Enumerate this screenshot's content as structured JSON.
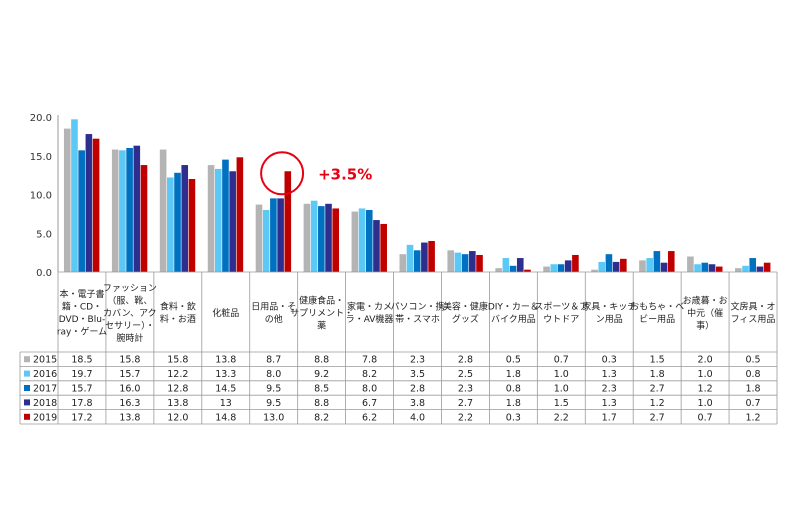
{
  "chart_data": {
    "type": "bar",
    "categories": [
      [
        "本・電子書",
        "籍・CD・",
        "DVD・Blu-",
        "ray・ゲーム"
      ],
      [
        "ファッション",
        "（服、靴、",
        "カバン、アク",
        "セサリー）・",
        "腕時計"
      ],
      [
        "食料・飲",
        "料・お酒"
      ],
      [
        "化粧品"
      ],
      [
        "日用品・そ",
        "の他"
      ],
      [
        "健康食品・",
        "サプリメント・",
        "薬"
      ],
      [
        "家電・カメ",
        "ラ・AV機器"
      ],
      [
        "パソコン・携",
        "帯・スマホ"
      ],
      [
        "美容・健康",
        "グッズ"
      ],
      [
        "DIY・カー＆",
        "バイク用品"
      ],
      [
        "スポーツ＆ア",
        "ウトドア"
      ],
      [
        "家具・キッチ",
        "ン用品"
      ],
      [
        "おもちゃ・ベ",
        "ビー用品"
      ],
      [
        "お歳暮・お",
        "中元（催",
        "事）"
      ],
      [
        "文房具・オ",
        "フィス用品"
      ]
    ],
    "series": [
      {
        "name": "2015",
        "color": "#b4b4b4",
        "values": [
          18.5,
          15.8,
          15.8,
          13.8,
          8.7,
          8.8,
          7.8,
          2.3,
          2.8,
          0.5,
          0.7,
          0.3,
          1.5,
          2.0,
          0.5
        ],
        "labels": [
          "18.5",
          "15.8",
          "15.8",
          "13.8",
          "8.7",
          "8.8",
          "7.8",
          "2.3",
          "2.8",
          "0.5",
          "0.7",
          "0.3",
          "1.5",
          "2.0",
          "0.5"
        ]
      },
      {
        "name": "2016",
        "color": "#5bc8f5",
        "values": [
          19.7,
          15.7,
          12.2,
          13.3,
          8.0,
          9.2,
          8.2,
          3.5,
          2.5,
          1.8,
          1.0,
          1.3,
          1.8,
          1.0,
          0.8
        ],
        "labels": [
          "19.7",
          "15.7",
          "12.2",
          "13.3",
          "8.0",
          "9.2",
          "8.2",
          "3.5",
          "2.5",
          "1.8",
          "1.0",
          "1.3",
          "1.8",
          "1.0",
          "0.8"
        ]
      },
      {
        "name": "2017",
        "color": "#0070c0",
        "values": [
          15.7,
          16.0,
          12.8,
          14.5,
          9.5,
          8.5,
          8.0,
          2.8,
          2.3,
          0.8,
          1.0,
          2.3,
          2.7,
          1.2,
          1.8
        ],
        "labels": [
          "15.7",
          "16.0",
          "12.8",
          "14.5",
          "9.5",
          "8.5",
          "8.0",
          "2.8",
          "2.3",
          "0.8",
          "1.0",
          "2.3",
          "2.7",
          "1.2",
          "1.8"
        ]
      },
      {
        "name": "2018",
        "color": "#2e2e8f",
        "values": [
          17.8,
          16.3,
          13.8,
          13,
          9.5,
          8.8,
          6.7,
          3.8,
          2.7,
          1.8,
          1.5,
          1.3,
          1.2,
          1.0,
          0.7
        ],
        "labels": [
          "17.8",
          "16.3",
          "13.8",
          "13",
          "9.5",
          "8.8",
          "6.7",
          "3.8",
          "2.7",
          "1.8",
          "1.5",
          "1.3",
          "1.2",
          "1.0",
          "0.7"
        ]
      },
      {
        "name": "2019",
        "color": "#c00000",
        "values": [
          17.2,
          13.8,
          12.0,
          14.8,
          13.0,
          8.2,
          6.2,
          4.0,
          2.2,
          0.3,
          2.2,
          1.7,
          2.7,
          0.7,
          1.2
        ],
        "labels": [
          "17.2",
          "13.8",
          "12.0",
          "14.8",
          "13.0",
          "8.2",
          "6.2",
          "4.0",
          "2.2",
          "0.3",
          "2.2",
          "1.7",
          "2.7",
          "0.7",
          "1.2"
        ]
      }
    ],
    "yticks": [
      "0.0",
      "5.0",
      "10.0",
      "15.0",
      "20.0"
    ],
    "ylim": [
      0,
      20
    ],
    "grid": false,
    "legend": "data-table",
    "annotation": {
      "text": "+3.5%",
      "category_index": 4,
      "series": "2019",
      "color": "#e60012"
    }
  }
}
